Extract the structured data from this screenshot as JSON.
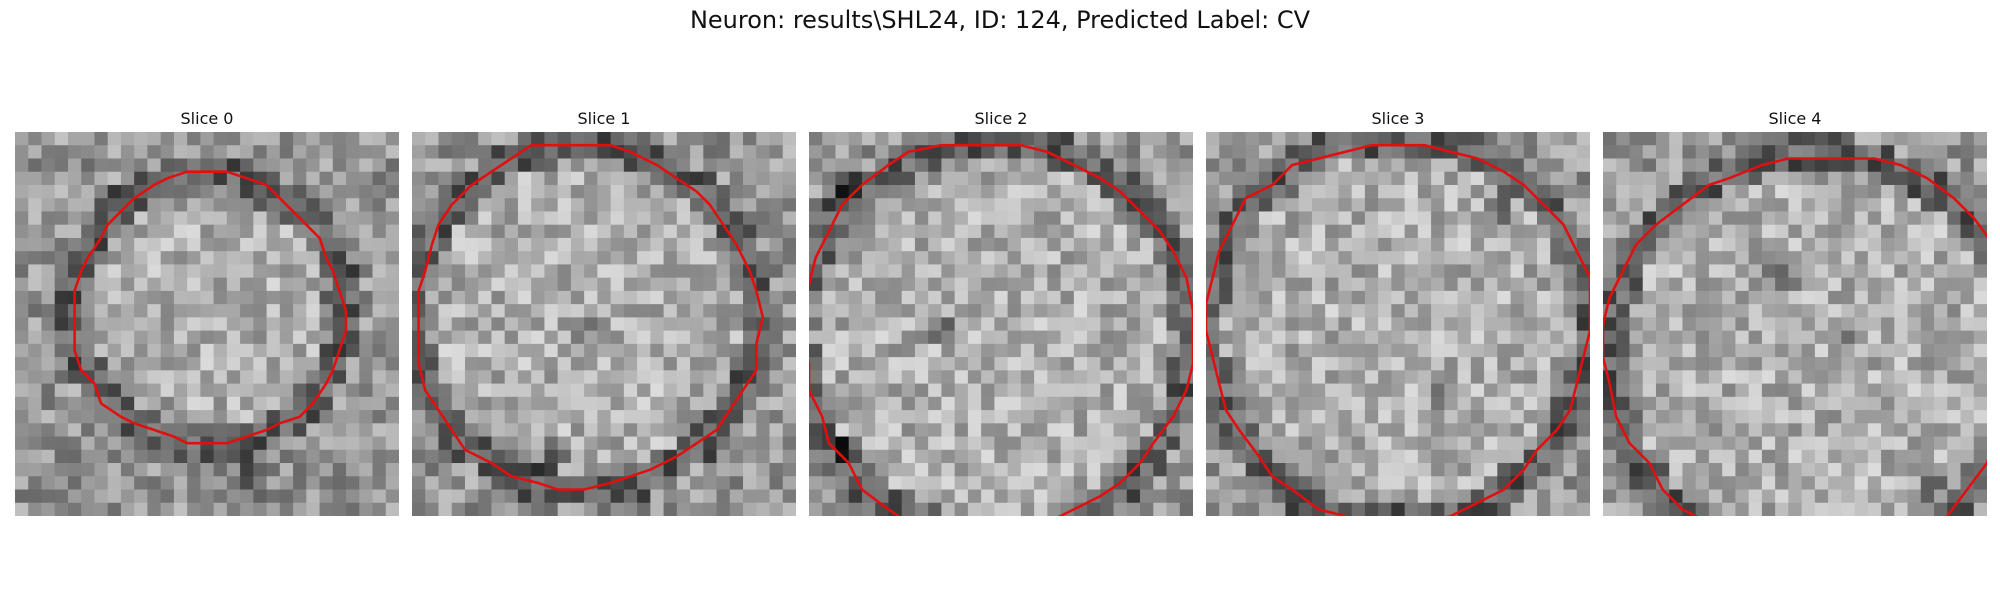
{
  "figure": {
    "title": "Neuron: results\\SHL24, ID: 124, Predicted Label: CV",
    "contour_color": "#e01010",
    "panels": [
      {
        "title": "Slice 0"
      },
      {
        "title": "Slice 1"
      },
      {
        "title": "Slice 2"
      },
      {
        "title": "Slice 3"
      },
      {
        "title": "Slice 4"
      }
    ]
  }
}
